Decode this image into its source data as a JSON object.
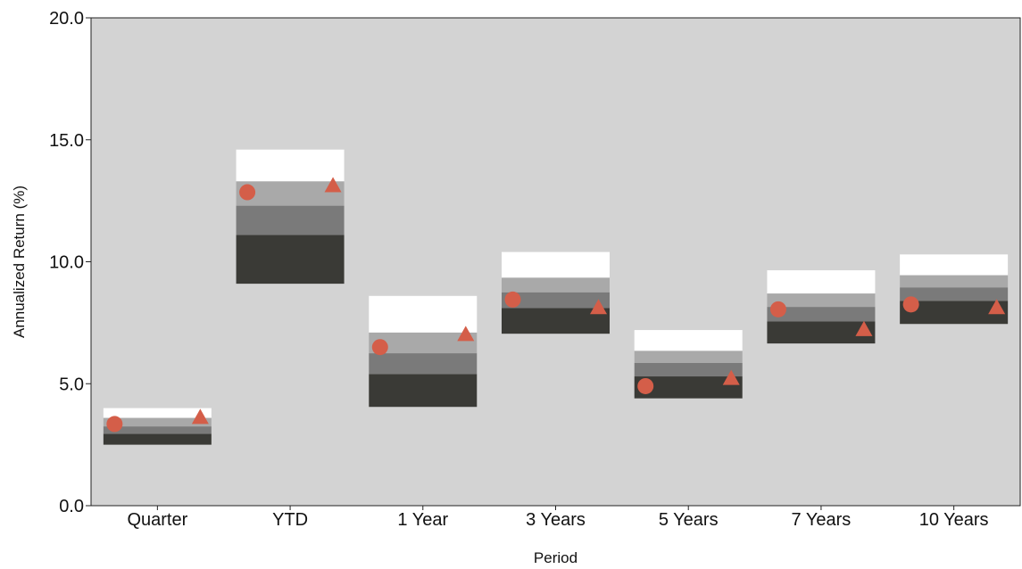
{
  "chart_data": {
    "type": "floating-bar-percentile",
    "title": "",
    "xlabel": "Period",
    "ylabel": "Annualized Return (%)",
    "ylim": [
      0,
      20
    ],
    "yticks": [
      "0.0",
      "5.0",
      "10.0",
      "15.0",
      "20.0"
    ],
    "ytick_values": [
      0,
      5,
      10,
      15,
      20
    ],
    "grid": false,
    "legend": "none",
    "colors": {
      "plot_background": "#d3d3d3",
      "band_top": "#ffffff",
      "band_upper_mid": "#a9a9a9",
      "band_lower_mid": "#7a7a7a",
      "band_bottom": "#3a3a36",
      "markers": "#d45e49"
    },
    "categories": [
      "Quarter",
      "YTD",
      "1 Year",
      "3 Years",
      "5 Years",
      "7 Years",
      "10 Years"
    ],
    "percentile_breakpoints": [
      [
        2.5,
        2.95,
        3.25,
        3.6,
        4.0
      ],
      [
        9.1,
        11.1,
        12.3,
        13.3,
        14.6
      ],
      [
        4.05,
        5.4,
        6.25,
        7.1,
        8.6
      ],
      [
        7.05,
        8.1,
        8.75,
        9.35,
        10.4
      ],
      [
        4.4,
        5.3,
        5.85,
        6.35,
        7.2
      ],
      [
        6.65,
        7.55,
        8.15,
        8.7,
        9.65
      ],
      [
        7.45,
        8.4,
        8.95,
        9.45,
        10.3
      ]
    ],
    "series": [
      {
        "marker": "circle",
        "values": [
          3.35,
          12.85,
          6.5,
          8.45,
          4.9,
          8.05,
          8.25
        ]
      },
      {
        "marker": "triangle",
        "values": [
          3.6,
          13.1,
          7.0,
          8.1,
          5.2,
          7.2,
          8.1
        ]
      }
    ]
  }
}
